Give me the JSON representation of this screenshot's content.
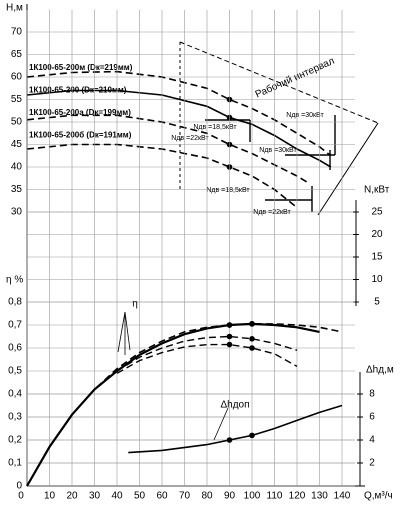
{
  "chart_data": [
    {
      "type": "line",
      "y_label": "H,м",
      "y2_label": "N,кВт",
      "xlim": [
        0,
        148
      ],
      "ylim": [
        9,
        75
      ],
      "yticks": [
        30,
        35,
        40,
        45,
        50,
        55,
        60,
        65,
        70
      ],
      "y2lim": [
        4,
        70
      ],
      "y2ticks": [
        5,
        10,
        15,
        20,
        25
      ],
      "grid": true,
      "markers": [
        90
      ],
      "series": [
        {
          "name": "1К100-65-200м (Dк=219мм)",
          "color": "#000",
          "dash": true,
          "x": [
            0,
            20,
            40,
            60,
            80,
            90,
            100,
            110,
            120,
            130,
            135
          ],
          "values": [
            60,
            61,
            61.2,
            60,
            57.5,
            55,
            53,
            50.5,
            47.5,
            44.5,
            42.5
          ]
        },
        {
          "name": "1К100-65-200 (Dк=210мм)",
          "color": "#000",
          "dash": false,
          "x": [
            0,
            20,
            40,
            60,
            80,
            90,
            100,
            110,
            120,
            130,
            135
          ],
          "values": [
            56,
            57,
            57,
            56,
            53.5,
            51,
            49.5,
            47,
            44,
            41.5,
            40
          ]
        },
        {
          "name": "1К100-65-200а (Dк=199мм)",
          "color": "#000",
          "dash": true,
          "x": [
            0,
            20,
            40,
            60,
            80,
            90,
            100,
            110,
            120,
            125
          ],
          "values": [
            50.5,
            51.5,
            51.5,
            50,
            47.5,
            45,
            43,
            40.5,
            38,
            36.5
          ]
        },
        {
          "name": "1К100-65-200б (Dк=191мм)",
          "color": "#000",
          "dash": true,
          "x": [
            0,
            20,
            40,
            60,
            80,
            90,
            100,
            110,
            120
          ],
          "values": [
            44,
            45,
            45,
            44,
            42,
            40,
            38,
            35,
            31
          ]
        }
      ],
      "annotations": [
        "Рабочий интервал",
        "Nдв =22кВт",
        "Nдв =18,5кВт",
        "Nдв =30кВт",
        "Nдв =18,5кВт",
        "Nдв =30кВт",
        "Nдв =22кВт"
      ]
    },
    {
      "type": "line",
      "y_label": "η %",
      "y2_label": "Δhд,м",
      "x_label": "Q,м³/ч",
      "xlim": [
        0,
        148
      ],
      "xticks": [
        0,
        10,
        20,
        30,
        40,
        50,
        60,
        70,
        80,
        90,
        100,
        110,
        120,
        130,
        140
      ],
      "ylim": [
        0,
        0.8
      ],
      "yticks": [
        0,
        {
          "value": 0.1,
          "label": "0,1"
        },
        {
          "value": 0.2,
          "label": "0,2"
        },
        {
          "value": 0.3,
          "label": "0,3"
        },
        {
          "value": 0.4,
          "label": "0,4"
        },
        {
          "value": 0.5,
          "label": "0,5"
        },
        {
          "value": 0.6,
          "label": "0,6"
        },
        {
          "value": 0.7,
          "label": "0,7"
        },
        {
          "value": 0.8,
          "label": "0,8"
        }
      ],
      "y2lim": [
        0,
        16
      ],
      "y2ticks": [
        2,
        4,
        6,
        8
      ],
      "grid": true,
      "markers": [
        90,
        100
      ],
      "series": [
        {
          "color": "#000",
          "dash": true,
          "width": 1.6,
          "x": [
            0,
            10,
            20,
            30,
            40,
            50,
            60,
            70,
            80,
            90,
            100,
            110,
            120,
            130,
            140
          ],
          "values": [
            0,
            0.17,
            0.31,
            0.42,
            0.51,
            0.58,
            0.63,
            0.67,
            0.69,
            0.7,
            0.705,
            0.705,
            0.7,
            0.69,
            0.67
          ]
        },
        {
          "color": "#000",
          "dash": false,
          "width": 2.2,
          "x": [
            0,
            10,
            20,
            30,
            40,
            50,
            60,
            70,
            80,
            90,
            100,
            110,
            120,
            130
          ],
          "values": [
            0,
            0.17,
            0.31,
            0.42,
            0.5,
            0.57,
            0.62,
            0.66,
            0.685,
            0.7,
            0.705,
            0.7,
            0.69,
            0.67
          ]
        },
        {
          "color": "#000",
          "dash": true,
          "width": 1.4,
          "x": [
            40,
            50,
            60,
            70,
            80,
            90,
            100,
            110,
            120
          ],
          "values": [
            0.5,
            0.56,
            0.6,
            0.63,
            0.645,
            0.65,
            0.64,
            0.62,
            0.59
          ]
        },
        {
          "color": "#000",
          "dash": true,
          "width": 1.4,
          "x": [
            40,
            50,
            60,
            70,
            80,
            90,
            100,
            110,
            120
          ],
          "values": [
            0.49,
            0.545,
            0.58,
            0.605,
            0.615,
            0.615,
            0.6,
            0.575,
            0.52
          ]
        },
        {
          "color": "#000",
          "dash": false,
          "width": 1.6,
          "axis": "y2",
          "x": [
            45,
            60,
            80,
            90,
            100,
            110,
            120,
            130,
            140
          ],
          "values": [
            2.9,
            3.1,
            3.6,
            4.0,
            4.4,
            5.0,
            5.7,
            6.4,
            7.0
          ]
        }
      ],
      "annotations": [
        "η",
        "Δhдоп"
      ]
    }
  ]
}
